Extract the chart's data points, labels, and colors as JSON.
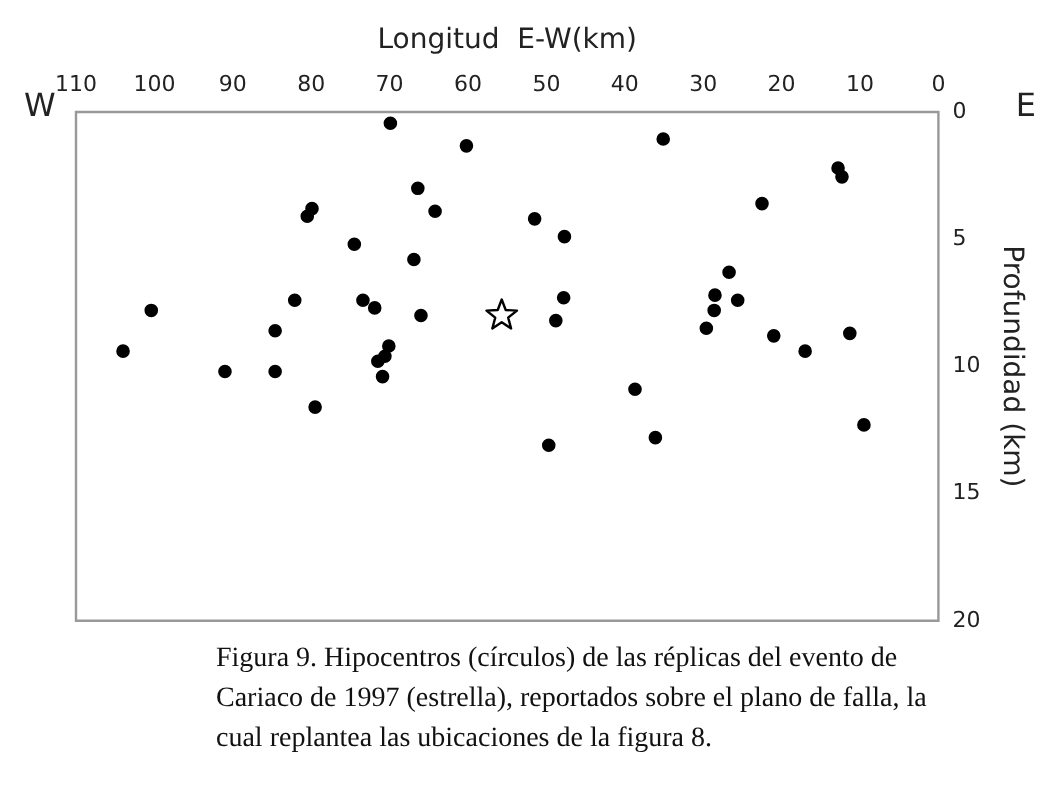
{
  "chart_data": {
    "type": "scatter",
    "xlabel": "Longitud  E-W(km)",
    "ylabel": "Profundidad (km)",
    "xlim": [
      110,
      0
    ],
    "xticks": [
      110,
      100,
      90,
      80,
      70,
      60,
      50,
      40,
      30,
      20,
      10,
      0
    ],
    "ylim": [
      20,
      0
    ],
    "yticks": [
      0,
      5,
      10,
      15,
      20
    ],
    "grid": false,
    "legend": false,
    "series": [
      {
        "color": "#000000",
        "marker": "circle",
        "x": [
          69.9,
          60.2,
          66.4,
          79.9,
          80.5,
          64.2,
          51.5,
          74.5,
          66.9,
          100.4,
          82.1,
          73.4,
          71.9,
          66.0,
          84.6,
          104.0,
          70.1,
          70.6,
          71.5,
          70.9,
          91.0,
          84.6,
          79.5,
          49.7,
          48.8,
          35.1,
          12.8,
          12.3,
          22.5,
          47.7,
          26.7,
          47.8,
          28.5,
          25.6,
          28.6,
          29.6,
          21.0,
          11.3,
          17.0,
          38.7,
          36.1,
          9.5
        ],
        "values": [
          0.44,
          1.33,
          3.0,
          3.8,
          4.1,
          3.9,
          4.2,
          5.2,
          5.8,
          7.8,
          7.4,
          7.4,
          7.7,
          8.0,
          8.6,
          9.4,
          9.2,
          9.6,
          9.8,
          10.4,
          10.2,
          10.2,
          11.6,
          13.1,
          8.2,
          1.06,
          2.2,
          2.55,
          3.6,
          4.9,
          6.3,
          7.3,
          7.2,
          7.4,
          7.8,
          8.5,
          8.8,
          8.7,
          9.4,
          10.9,
          12.8,
          12.3
        ]
      },
      {
        "color": "#000000",
        "marker": "star",
        "x": [
          55.7
        ],
        "values": [
          8.0
        ]
      }
    ],
    "annotations": [
      "W",
      "E",
      "Figura 9. Hipocentros (círculos) de las réplicas del evento de Cariaco de 1997 (estrella), reportados sobre el plano de falla, la cual replantea las ubicaciones de la figura 8."
    ]
  }
}
